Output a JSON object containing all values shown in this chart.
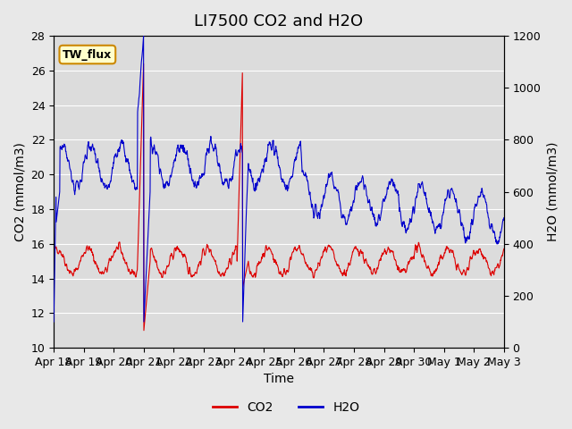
{
  "title": "LI7500 CO2 and H2O",
  "xlabel": "Time",
  "ylabel_left": "CO2 (mmol/m3)",
  "ylabel_right": "H2O (mmol/m3)",
  "ylim_left": [
    10,
    28
  ],
  "ylim_right": [
    0,
    1200
  ],
  "co2_color": "#dd0000",
  "h2o_color": "#0000cc",
  "bg_color": "#e8e8e8",
  "plot_bg_color": "#e0e0e0",
  "legend_label_co2": "CO2",
  "legend_label_h2o": "H2O",
  "site_label": "TW_flux",
  "site_box_facecolor": "#ffffcc",
  "site_box_edgecolor": "#cc8800",
  "xtick_labels": [
    "Apr 18",
    "Apr 19",
    "Apr 20",
    "Apr 21",
    "Apr 22",
    "Apr 23",
    "Apr 24",
    "Apr 25",
    "Apr 26",
    "Apr 27",
    "Apr 28",
    "Apr 29",
    "Apr 30",
    "May 1",
    "May 2",
    "May 3"
  ],
  "title_fontsize": 13,
  "axis_label_fontsize": 10,
  "tick_fontsize": 9,
  "legend_fontsize": 10
}
